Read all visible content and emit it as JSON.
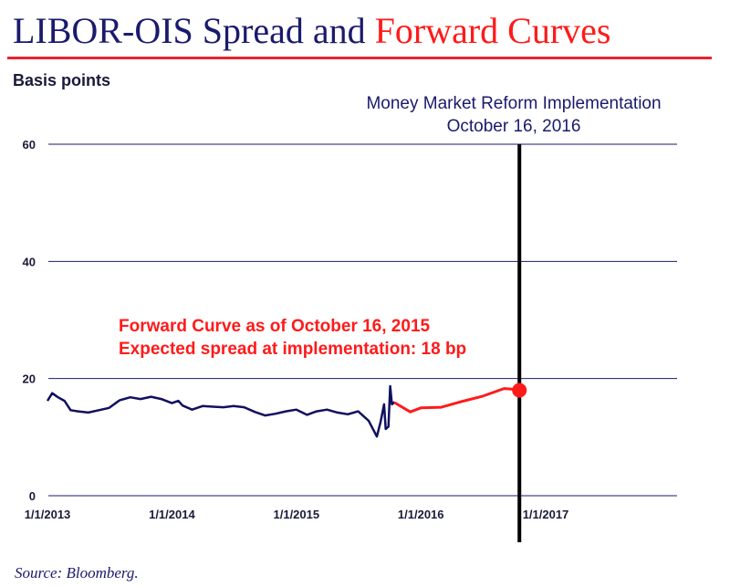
{
  "page": {
    "title_part1": "LIBOR-OIS Spread and ",
    "title_part2": "Forward Curves",
    "source": "Source: Bloomberg."
  },
  "chart_data": {
    "type": "line",
    "ylabel": "Basis points",
    "xlabel": "",
    "ylim": [
      0,
      60
    ],
    "yticks": [
      0,
      20,
      40,
      60
    ],
    "xlim": [
      "2013-01-01",
      "2017-06-01"
    ],
    "xticks": [
      "1/1/2013",
      "1/1/2014",
      "1/1/2015",
      "1/1/2016",
      "1/1/2017"
    ],
    "grid": true,
    "colors": {
      "historical": "#101060",
      "forward": "#ff1a1a",
      "implementation_line": "#000000",
      "gridline": "#1a1a6e"
    },
    "series": [
      {
        "role": "historical",
        "points": [
          [
            "2013-01-01",
            16.2
          ],
          [
            "2013-01-15",
            17.5
          ],
          [
            "2013-02-01",
            16.8
          ],
          [
            "2013-02-20",
            16.2
          ],
          [
            "2013-03-10",
            14.6
          ],
          [
            "2013-04-01",
            14.4
          ],
          [
            "2013-05-01",
            14.2
          ],
          [
            "2013-06-01",
            14.6
          ],
          [
            "2013-07-01",
            15.0
          ],
          [
            "2013-08-01",
            16.3
          ],
          [
            "2013-09-01",
            16.8
          ],
          [
            "2013-10-01",
            16.5
          ],
          [
            "2013-11-01",
            16.9
          ],
          [
            "2013-12-01",
            16.5
          ],
          [
            "2014-01-01",
            15.8
          ],
          [
            "2014-01-20",
            16.2
          ],
          [
            "2014-02-01",
            15.4
          ],
          [
            "2014-03-01",
            14.7
          ],
          [
            "2014-04-01",
            15.3
          ],
          [
            "2014-05-01",
            15.2
          ],
          [
            "2014-06-01",
            15.1
          ],
          [
            "2014-07-01",
            15.3
          ],
          [
            "2014-08-01",
            15.1
          ],
          [
            "2014-09-01",
            14.3
          ],
          [
            "2014-10-01",
            13.7
          ],
          [
            "2014-11-01",
            14.0
          ],
          [
            "2014-12-01",
            14.4
          ],
          [
            "2015-01-01",
            14.7
          ],
          [
            "2015-02-01",
            13.8
          ],
          [
            "2015-03-01",
            14.4
          ],
          [
            "2015-04-01",
            14.7
          ],
          [
            "2015-05-01",
            14.2
          ],
          [
            "2015-06-01",
            13.9
          ],
          [
            "2015-07-01",
            14.4
          ],
          [
            "2015-08-01",
            12.8
          ],
          [
            "2015-08-25",
            10.1
          ],
          [
            "2015-09-05",
            12.6
          ],
          [
            "2015-09-15",
            15.6
          ],
          [
            "2015-09-20",
            11.4
          ],
          [
            "2015-09-28",
            11.8
          ],
          [
            "2015-10-03",
            18.7
          ],
          [
            "2015-10-08",
            15.6
          ],
          [
            "2015-10-16",
            16.0
          ]
        ]
      },
      {
        "role": "forward",
        "points": [
          [
            "2015-10-16",
            15.9
          ],
          [
            "2015-12-01",
            14.3
          ],
          [
            "2016-01-01",
            15.0
          ],
          [
            "2016-03-01",
            15.1
          ],
          [
            "2016-05-01",
            16.1
          ],
          [
            "2016-07-01",
            17.0
          ],
          [
            "2016-09-01",
            18.3
          ],
          [
            "2016-10-16",
            18.1
          ]
        ]
      }
    ],
    "implementation_date": "2016-10-16",
    "implementation_value": 18,
    "annotations": {
      "reform_line1": "Money Market Reform Implementation",
      "reform_line2": "October 16, 2016",
      "forward_line1": "Forward Curve as of October 16, 2015",
      "forward_line2": "Expected spread at implementation: 18 bp"
    }
  }
}
